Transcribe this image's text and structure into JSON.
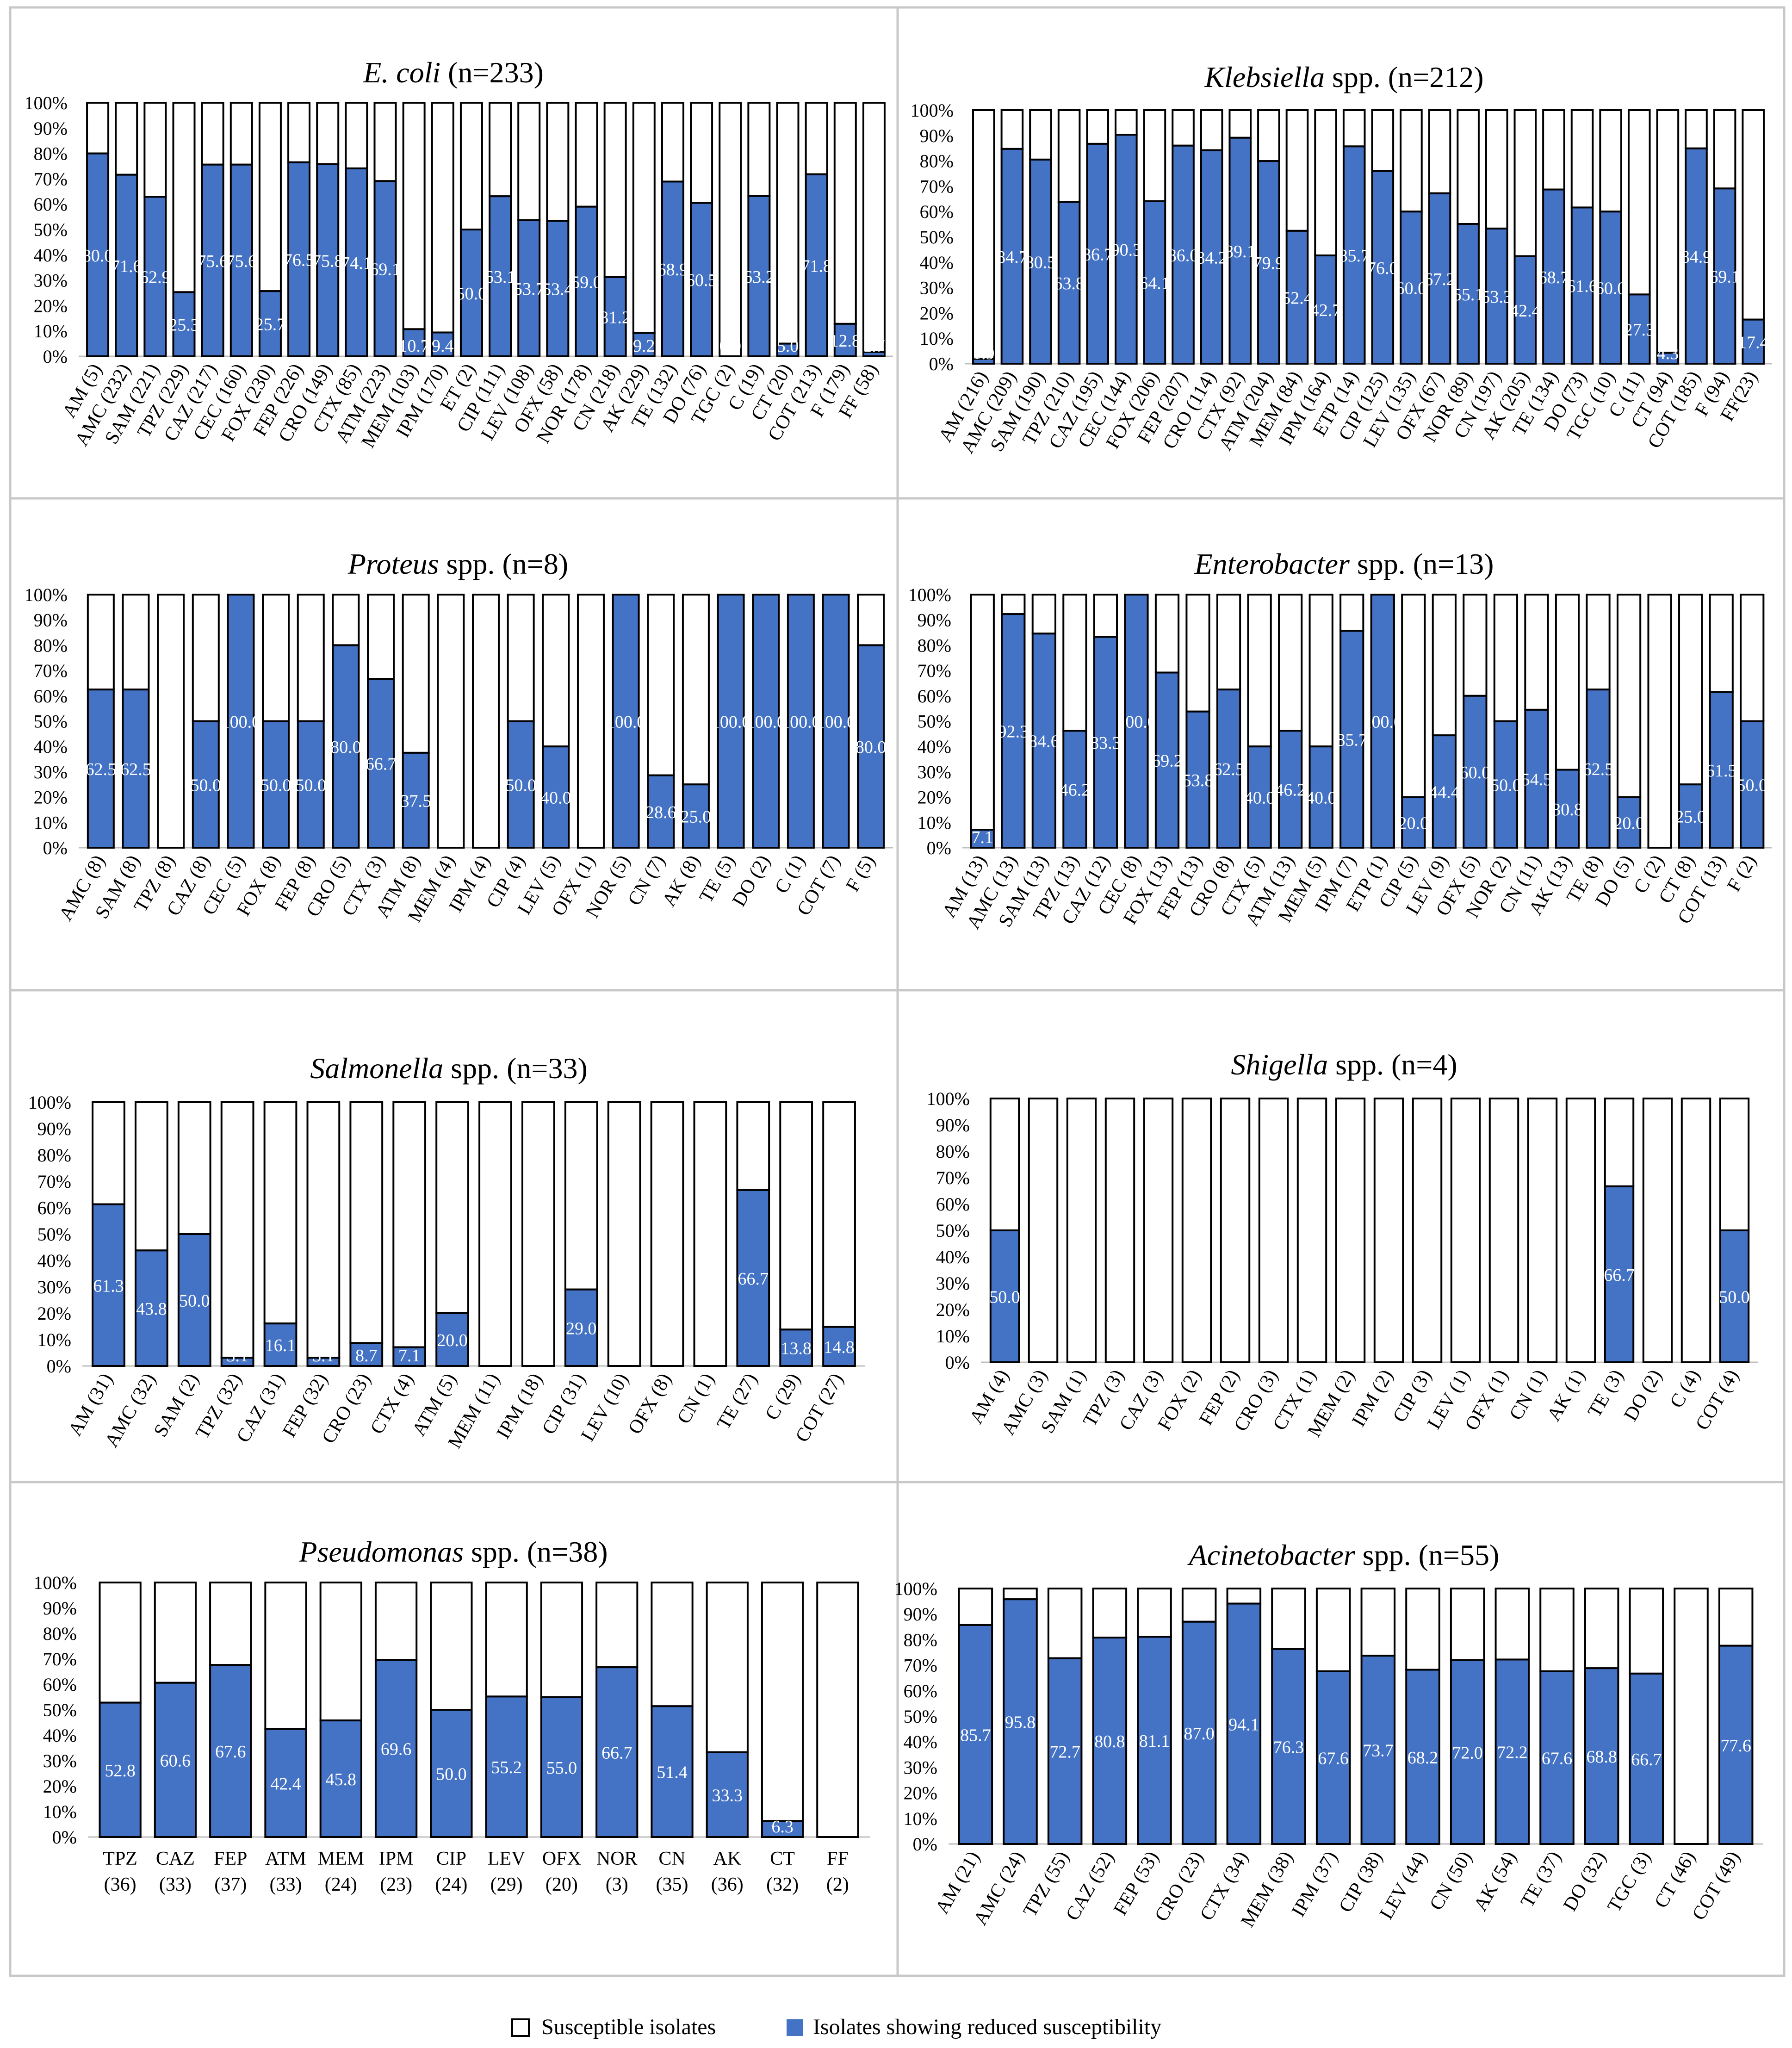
{
  "legend": {
    "susceptible_label": "Susceptible isolates",
    "reduced_label": "Isolates showing reduced susceptibility"
  },
  "colors": {
    "reduced": "#4472c4",
    "susceptible": "#ffffff",
    "outline": "#000000",
    "label_text": "#ffffff"
  },
  "chart_data": [
    {
      "type": "bar",
      "stacked": true,
      "title_italic": "E. coli",
      "title_rest": " (n=233)",
      "ylim": [
        0,
        100
      ],
      "y_ticks": [
        "0%",
        "10%",
        "20%",
        "30%",
        "40%",
        "50%",
        "60%",
        "70%",
        "80%",
        "90%",
        "100%"
      ],
      "categories": [
        "AM (5)",
        "AMC (232)",
        "SAM (221)",
        "TPZ (229)",
        "CAZ (217)",
        "CEC (160)",
        "FOX (230)",
        "FEP (226)",
        "CRO (149)",
        "CTX (85)",
        "ATM (223)",
        "MEM (103)",
        "IPM (170)",
        "ET (2)",
        "CIP (111)",
        "LEV (108)",
        "OFX (58)",
        "NOR (178)",
        "CN (218)",
        "AK (229)",
        "TE (132)",
        "DO (76)",
        "TGC (2)",
        "C (19)",
        "CT (20)",
        "COT (213)",
        "F (179)",
        "FF (58)"
      ],
      "series": [
        {
          "name": "Isolates showing reduced susceptibility",
          "values": [
            80.0,
            71.6,
            62.9,
            25.3,
            75.6,
            75.6,
            25.7,
            76.5,
            75.8,
            74.1,
            69.1,
            10.7,
            9.4,
            50.0,
            63.1,
            53.7,
            53.4,
            59.0,
            31.2,
            9.2,
            68.9,
            60.5,
            0.0,
            63.2,
            5.0,
            71.8,
            12.8,
            1.7
          ],
          "labels": [
            "80.0",
            "71.6",
            "62.9",
            "25.3",
            "75.6",
            "75.6",
            "25.7",
            "76.5",
            "75.8",
            "74.1",
            "69.1",
            "10.7",
            "9.4",
            "50.0",
            "63.1",
            "53.7",
            "53.4",
            "59.0",
            "31.2",
            "9.2",
            "68.9",
            "60.5",
            "0.0",
            "63.2",
            "5.0",
            "71.8",
            "12.8",
            "1.7"
          ]
        }
      ]
    },
    {
      "type": "bar",
      "stacked": true,
      "title_italic": "Klebsiella",
      "title_rest": " spp. (n=212)",
      "ylim": [
        0,
        100
      ],
      "y_ticks": [
        "0%",
        "10%",
        "20%",
        "30%",
        "40%",
        "50%",
        "60%",
        "70%",
        "80%",
        "90%",
        "100%"
      ],
      "categories": [
        "AM (216)",
        "AMC (209)",
        "SAM (190)",
        "TPZ (210)",
        "CAZ (195)",
        "CEC (144)",
        "FOX (206)",
        "FEP (207)",
        "CRO (114)",
        "CTX (92)",
        "ATM (204)",
        "MEM (84)",
        "IPM (164)",
        "ETP (14)",
        "CIP (125)",
        "LEV (135)",
        "OFX (67)",
        "NOR (89)",
        "CN (197)",
        "AK (205)",
        "TE (134)",
        "DO (73)",
        "TGC (10)",
        "C (11)",
        "CT (94)",
        "COT (185)",
        "F (94)",
        "FF(23)"
      ],
      "series": [
        {
          "name": "Isolates showing reduced susceptibility",
          "values": [
            1.9,
            84.7,
            80.5,
            63.8,
            86.7,
            90.3,
            64.1,
            86.0,
            84.2,
            89.1,
            79.9,
            52.4,
            42.7,
            85.7,
            76.0,
            60.0,
            67.2,
            55.1,
            53.3,
            42.4,
            68.7,
            61.6,
            60.0,
            27.3,
            4.3,
            84.9,
            69.1,
            17.4
          ],
          "labels": [
            "1.9",
            "84.7",
            "80.5",
            "63.8",
            "86.7",
            "90.3",
            "64.1",
            "86.0",
            "84.2",
            "89.1",
            "79.9",
            "52.4",
            "42.7",
            "85.7",
            "76.0",
            "60.0",
            "67.2",
            "55.1",
            "53.3",
            "42.4",
            "68.7",
            "61.6",
            "60.0",
            "27.3",
            "4.3",
            "84.9",
            "69.1",
            "17.4"
          ]
        }
      ]
    },
    {
      "type": "bar",
      "stacked": true,
      "title_italic": "Proteus",
      "title_rest": " spp. (n=8)",
      "ylim": [
        0,
        100
      ],
      "y_ticks": [
        "0%",
        "10%",
        "20%",
        "30%",
        "40%",
        "50%",
        "60%",
        "70%",
        "80%",
        "90%",
        "100%"
      ],
      "categories": [
        "AMC (8)",
        "SAM (8)",
        "TPZ (8)",
        "CAZ (8)",
        "CEC (5)",
        "FOX (8)",
        "FEP (8)",
        "CRO (5)",
        "CTX (3)",
        "ATM (8)",
        "MEM (4)",
        "IPM (4)",
        "CIP (4)",
        "LEV (5)",
        "OFX (1)",
        "NOR (5)",
        "CN (7)",
        "AK (8)",
        "TE (5)",
        "DO (2)",
        "C (1)",
        "COT (7)",
        "F (5)"
      ],
      "series": [
        {
          "name": "Isolates showing reduced susceptibility",
          "values": [
            62.5,
            62.5,
            0.0,
            50.0,
            100.0,
            50.0,
            50.0,
            80.0,
            66.7,
            37.5,
            0.0,
            0.0,
            50.0,
            40.0,
            0.0,
            100.0,
            28.6,
            25.0,
            100.0,
            100.0,
            100.0,
            100.0,
            80.0
          ],
          "labels": [
            "62.5",
            "62.5",
            "0.0",
            "50.0",
            "100.0",
            "50.0",
            "50.0",
            "80.0",
            "66.7",
            "37.5",
            "0.0",
            "0.0",
            "50.0",
            "40.0",
            "0.0",
            "100.0",
            "28.6",
            "25.0",
            "100.0",
            "100.0",
            "100.0",
            "100.0",
            "80.0"
          ]
        }
      ]
    },
    {
      "type": "bar",
      "stacked": true,
      "title_italic": "Enterobacter",
      "title_rest": " spp. (n=13)",
      "ylim": [
        0,
        100
      ],
      "y_ticks": [
        "0%",
        "10%",
        "20%",
        "30%",
        "40%",
        "50%",
        "60%",
        "70%",
        "80%",
        "90%",
        "100%"
      ],
      "categories": [
        "AM (13)",
        "AMC (13)",
        "SAM (13)",
        "TPZ (13)",
        "CAZ (12)",
        "CEC (8)",
        "FOX (13)",
        "FEP (13)",
        "CRO (8)",
        "CTX (5)",
        "ATM (13)",
        "MEM (5)",
        "IPM (7)",
        "ETP (1)",
        "CIP (5)",
        "LEV (9)",
        "OFX (5)",
        "NOR (2)",
        "CN (11)",
        "AK (13)",
        "TE (8)",
        "DO (5)",
        "C (2)",
        "CT (8)",
        "COT (13)",
        "F (2)"
      ],
      "series": [
        {
          "name": "Isolates showing reduced susceptibility",
          "values": [
            7.1,
            92.3,
            84.6,
            46.2,
            83.3,
            100.0,
            69.2,
            53.8,
            62.5,
            40.0,
            46.2,
            40.0,
            85.7,
            100.0,
            20.0,
            44.4,
            60.0,
            50.0,
            54.5,
            30.8,
            62.5,
            20.0,
            0.0,
            25.0,
            61.5,
            50.0
          ],
          "labels": [
            "7.1",
            "92.3",
            "84.6",
            "46.2",
            "83.3",
            "100.0",
            "69.2",
            "53.8",
            "62.5",
            "40.0",
            "46.2",
            "40.0",
            "85.7",
            "100.0",
            "20.0",
            "44.4",
            "60.0",
            "50.0",
            "54.5",
            "30.8",
            "62.5",
            "20.0",
            "0.0",
            "25.0",
            "61.5",
            "50.0"
          ]
        }
      ]
    },
    {
      "type": "bar",
      "stacked": true,
      "title_italic": "Salmonella",
      "title_rest": " spp. (n=33)",
      "ylim": [
        0,
        100
      ],
      "y_ticks": [
        "0%",
        "10%",
        "20%",
        "30%",
        "40%",
        "50%",
        "60%",
        "70%",
        "80%",
        "90%",
        "100%"
      ],
      "categories": [
        "AM (31)",
        "AMC (32)",
        "SAM (2)",
        "TPZ (32)",
        "CAZ (31)",
        "FEP (32)",
        "CRO (23)",
        "CTX (4)",
        "ATM (5)",
        "MEM (11)",
        "IPM (18)",
        "CIP (31)",
        "LEV (10)",
        "OFX (8)",
        "CN (1)",
        "TE (27)",
        "C (29)",
        "COT (27)"
      ],
      "series": [
        {
          "name": "Isolates showing reduced susceptibility",
          "values": [
            61.3,
            43.8,
            50.0,
            3.1,
            16.1,
            3.1,
            8.7,
            7.1,
            20.0,
            0.0,
            0.0,
            29.0,
            0.0,
            0.0,
            0.0,
            66.7,
            13.8,
            14.8
          ],
          "labels": [
            "61.3",
            "43.8",
            "50.0",
            "3.1",
            "16.1",
            "3.1",
            "8.7",
            "7.1",
            "20.0",
            "0.0",
            "0.0",
            "29.0",
            "0.0",
            "0.0",
            "0.0",
            "66.7",
            "13.8",
            "14.8"
          ]
        }
      ]
    },
    {
      "type": "bar",
      "stacked": true,
      "title_italic": "Shigella",
      "title_rest": " spp. (n=4)",
      "ylim": [
        0,
        100
      ],
      "y_ticks": [
        "0%",
        "10%",
        "20%",
        "30%",
        "40%",
        "50%",
        "60%",
        "70%",
        "80%",
        "90%",
        "100%"
      ],
      "categories": [
        "AM (4)",
        "AMC (3)",
        "SAM (1)",
        "TPZ (3)",
        "CAZ (3)",
        "FOX (2)",
        "FEP (2)",
        "CRO (3)",
        "CTX (1)",
        "MEM (2)",
        "IPM (2)",
        "CIP (3)",
        "LEV (1)",
        "OFX (1)",
        "CN (1)",
        "AK (1)",
        "TE (3)",
        "DO (2)",
        "C (4)",
        "COT (4)"
      ],
      "series": [
        {
          "name": "Isolates showing reduced susceptibility",
          "values": [
            50.0,
            0,
            0,
            0,
            0,
            0,
            0,
            0,
            0,
            0,
            0,
            0,
            0,
            0,
            0,
            0,
            66.7,
            0,
            0,
            50.0
          ],
          "labels": [
            "50.0",
            "",
            "",
            "",
            "",
            "",
            "",
            "",
            "",
            "",
            "",
            "",
            "",
            "",
            "",
            "",
            "66.7",
            "",
            "",
            "50.0"
          ]
        }
      ]
    },
    {
      "type": "bar",
      "stacked": true,
      "title_italic": "Pseudomonas",
      "title_rest": " spp. (n=38)",
      "ylim": [
        0,
        100
      ],
      "horizontal_labels": true,
      "y_ticks": [
        "0%",
        "10%",
        "20%",
        "30%",
        "40%",
        "50%",
        "60%",
        "70%",
        "80%",
        "90%",
        "100%"
      ],
      "categories": [
        "TPZ (36)",
        "CAZ (33)",
        "FEP (37)",
        "ATM (33)",
        "MEM (24)",
        "IPM (23)",
        "CIP (24)",
        "LEV (29)",
        "OFX (20)",
        "NOR (3)",
        "CN (35)",
        "AK (36)",
        "CT (32)",
        "FF (2)"
      ],
      "category_lines": [
        [
          "TPZ",
          "(36)"
        ],
        [
          "CAZ",
          "(33)"
        ],
        [
          "FEP",
          "(37)"
        ],
        [
          "ATM",
          "(33)"
        ],
        [
          "MEM",
          "(24)"
        ],
        [
          "IPM",
          "(23)"
        ],
        [
          "CIP",
          "(24)"
        ],
        [
          "LEV",
          "(29)"
        ],
        [
          "OFX",
          "(20)"
        ],
        [
          "NOR",
          "(3)"
        ],
        [
          "CN",
          "(35)"
        ],
        [
          "AK",
          "(36)"
        ],
        [
          "CT",
          "(32)"
        ],
        [
          "FF",
          "(2)"
        ]
      ],
      "series": [
        {
          "name": "Isolates showing reduced susceptibility",
          "values": [
            52.8,
            60.6,
            67.6,
            42.4,
            45.8,
            69.6,
            50.0,
            55.2,
            55.0,
            66.7,
            51.4,
            33.3,
            6.3,
            0.0
          ],
          "labels": [
            "52.8",
            "60.6",
            "67.6",
            "42.4",
            "45.8",
            "69.6",
            "50.0",
            "55.2",
            "55.0",
            "66.7",
            "51.4",
            "33.3",
            "6.3",
            ""
          ]
        }
      ]
    },
    {
      "type": "bar",
      "stacked": true,
      "title_italic": "Acinetobacter",
      "title_rest": " spp. (n=55)",
      "ylim": [
        0,
        100
      ],
      "y_ticks": [
        "0%",
        "10%",
        "20%",
        "30%",
        "40%",
        "50%",
        "60%",
        "70%",
        "80%",
        "90%",
        "100%"
      ],
      "categories": [
        "AM (21)",
        "AMC (24)",
        "TPZ (55)",
        "CAZ (52)",
        "FEP (53)",
        "CRO (23)",
        "CTX (34)",
        "MEM (38)",
        "IPM (37)",
        "CIP (38)",
        "LEV (44)",
        "CN (50)",
        "AK (54)",
        "TE (37)",
        "DO (32)",
        "TGC (3)",
        "CT (46)",
        "COT (49)"
      ],
      "series": [
        {
          "name": "Isolates showing reduced susceptibility",
          "values": [
            85.7,
            95.8,
            72.7,
            80.8,
            81.1,
            87.0,
            94.1,
            76.3,
            67.6,
            73.7,
            68.2,
            72.0,
            72.2,
            67.6,
            68.8,
            66.7,
            0.0,
            77.6
          ],
          "labels": [
            "85.7",
            "95.8",
            "72.7",
            "80.8",
            "81.1",
            "87.0",
            "94.1",
            "76.3",
            "67.6",
            "73.7",
            "68.2",
            "72.0",
            "72.2",
            "67.6",
            "68.8",
            "66.7",
            "",
            "77.6"
          ]
        }
      ]
    }
  ]
}
